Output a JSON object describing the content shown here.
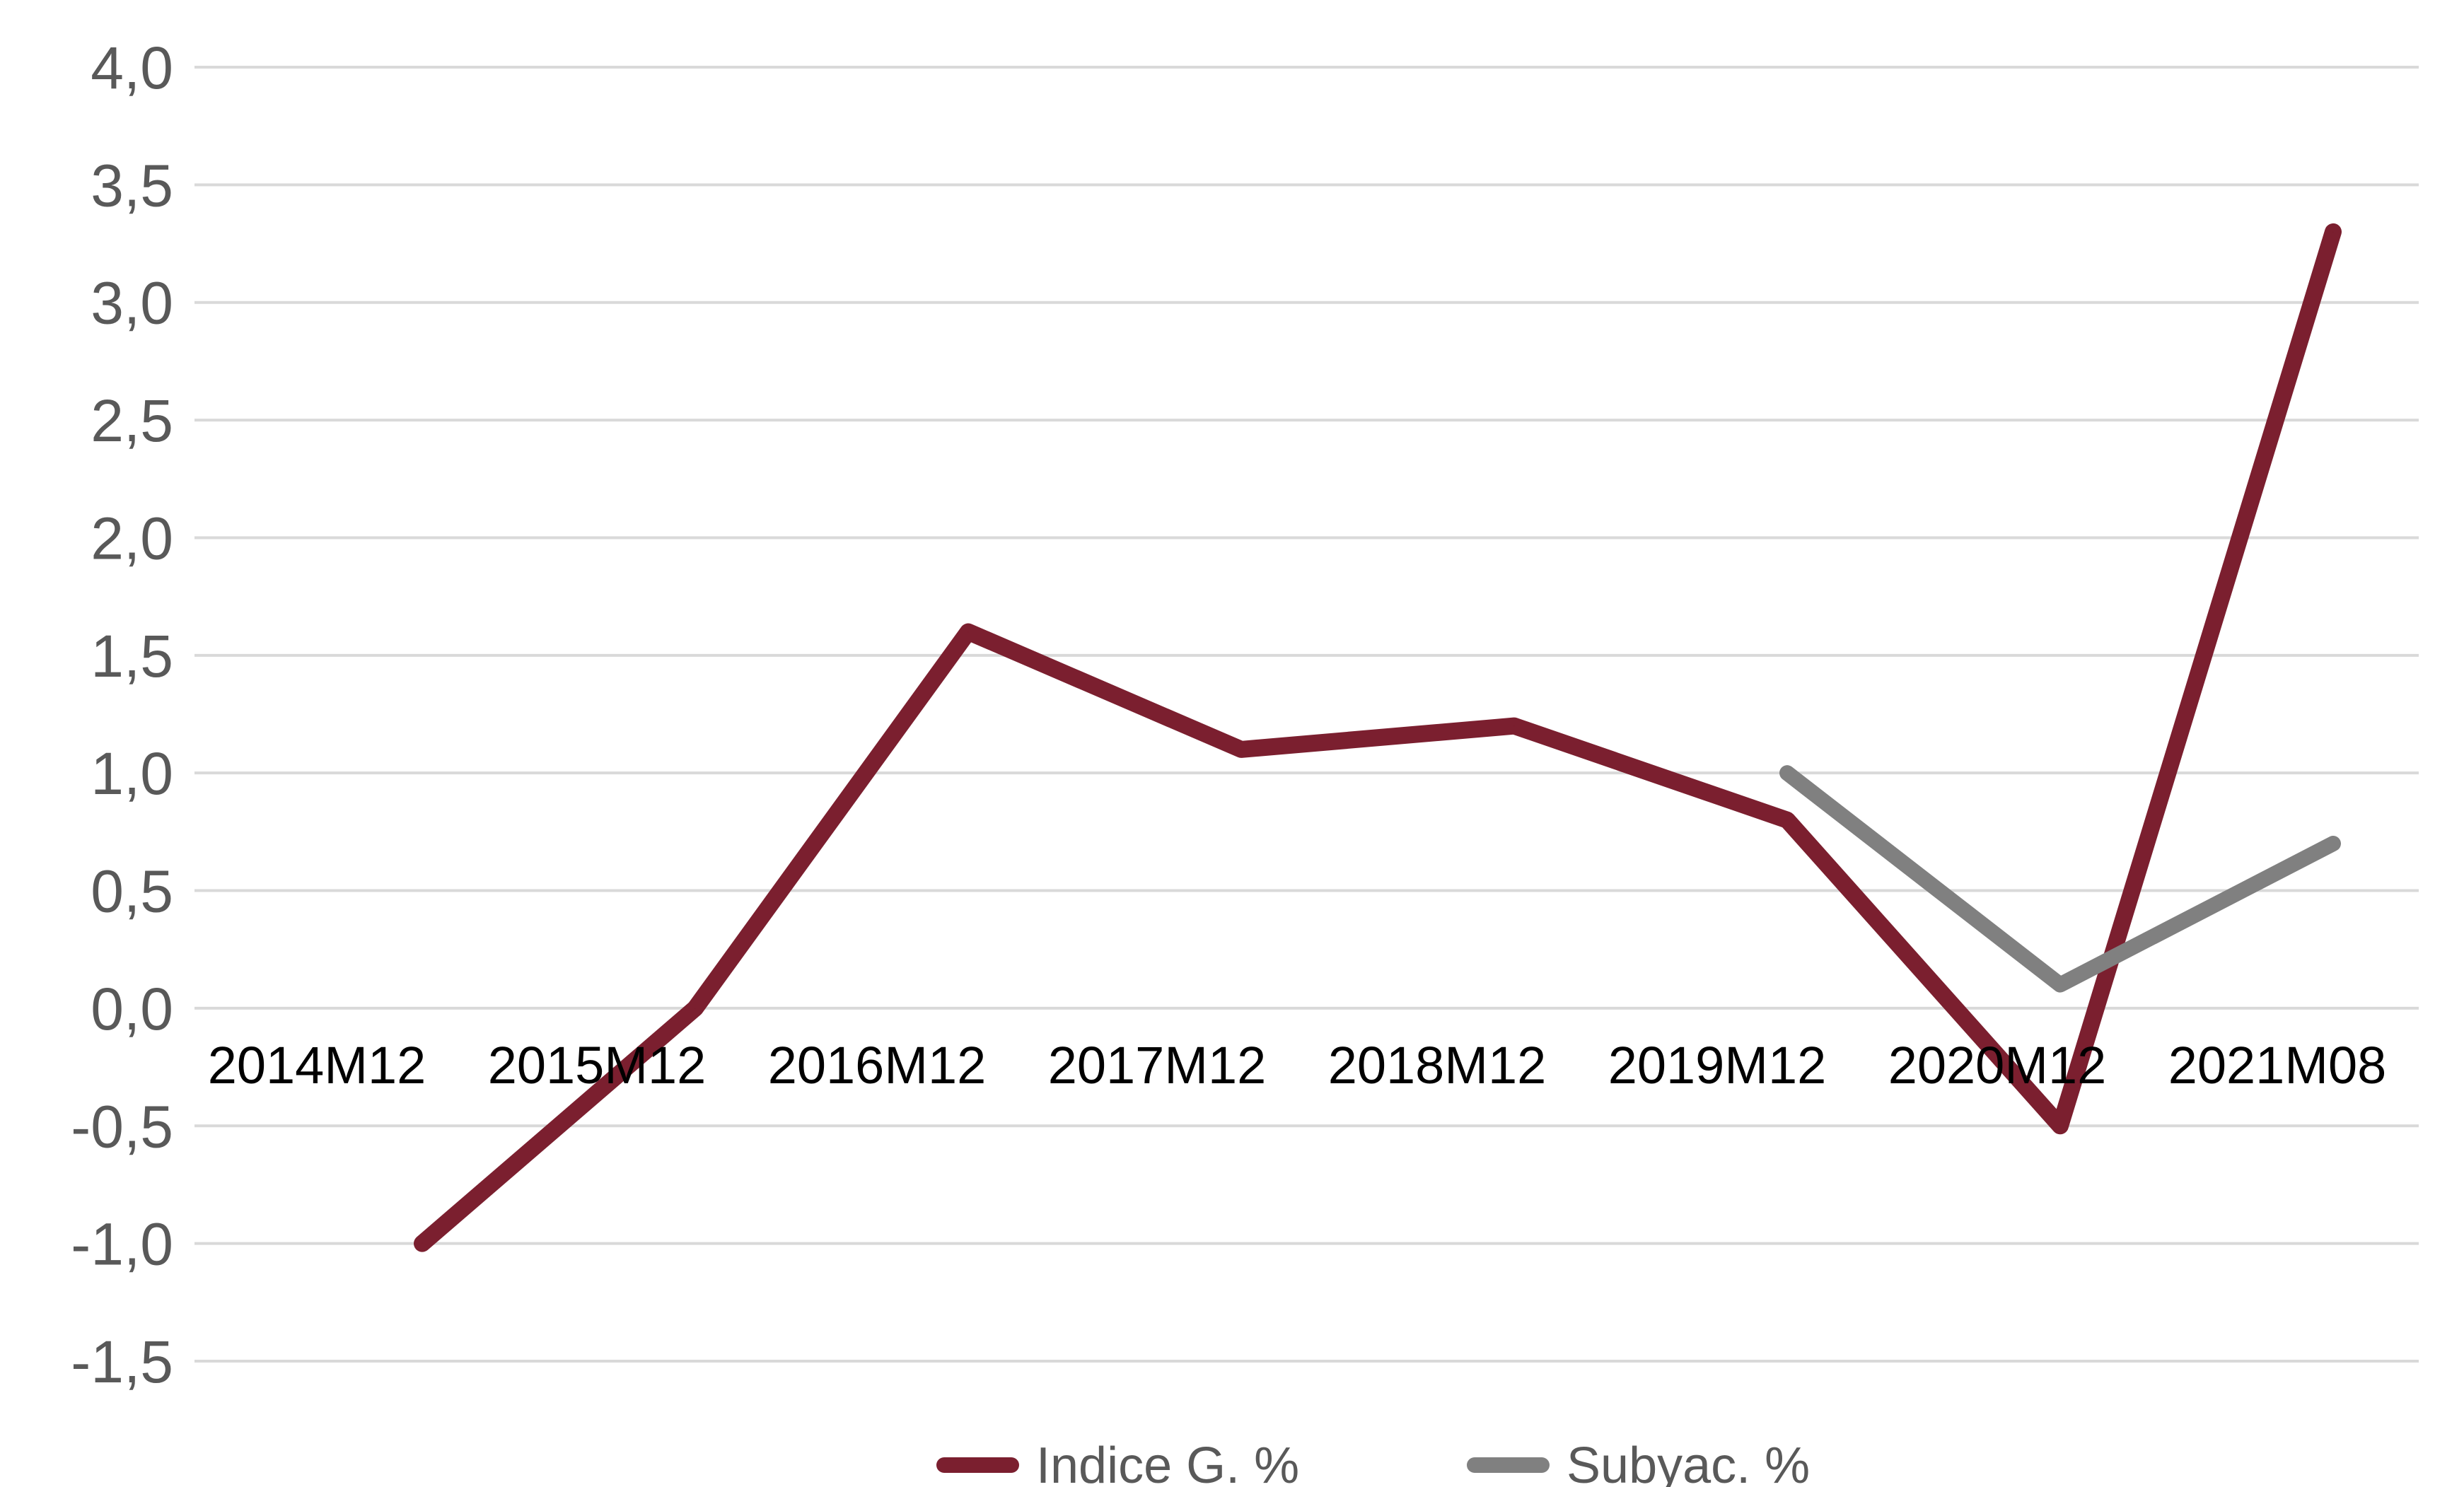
{
  "chart_data": {
    "type": "line",
    "title": "",
    "xlabel": "",
    "ylabel": "",
    "categories": [
      "2014M12",
      "2015M12",
      "2016M12",
      "2017M12",
      "2018M12",
      "2019M12",
      "2020M12",
      "2021M08"
    ],
    "ylim": [
      -1.5,
      4.0
    ],
    "yticks": [
      "4,0",
      "3,5",
      "3,0",
      "2,5",
      "2,0",
      "1,5",
      "1,0",
      "0,5",
      "0,0",
      "-0,5",
      "-1,0",
      "-1,5"
    ],
    "ytick_values": [
      4.0,
      3.5,
      3.0,
      2.5,
      2.0,
      1.5,
      1.0,
      0.5,
      0.0,
      -0.5,
      -1.0,
      -1.5
    ],
    "grid": true,
    "legend_position": "bottom",
    "series": [
      {
        "name": "Indice G. %",
        "color": "#7b1f2f",
        "values": [
          -1.0,
          0.0,
          1.6,
          1.1,
          1.2,
          0.8,
          -0.5,
          3.3
        ]
      },
      {
        "name": "Subyac. %",
        "color": "#808080",
        "values": [
          null,
          null,
          null,
          null,
          null,
          1.0,
          0.1,
          0.7
        ]
      }
    ]
  }
}
